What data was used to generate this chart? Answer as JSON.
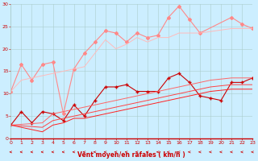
{
  "bg_color": "#cceeff",
  "grid_color": "#aacccc",
  "xlim": [
    0,
    23
  ],
  "ylim": [
    0,
    30
  ],
  "xticks": [
    0,
    1,
    2,
    3,
    4,
    5,
    6,
    7,
    8,
    9,
    10,
    11,
    12,
    13,
    14,
    15,
    16,
    17,
    18,
    19,
    20,
    21,
    22,
    23
  ],
  "yticks": [
    0,
    5,
    10,
    15,
    20,
    25,
    30
  ],
  "xlabel": "Vent moyen/en rafales ( km/h )",
  "xlabel_color": "#cc0000",
  "xlabel_fontsize": 5.5,
  "tick_color": "#cc0000",
  "tick_fontsize": 4.5,
  "lines": [
    {
      "x": [
        0,
        1,
        2,
        3,
        4,
        5,
        6,
        7,
        8,
        9,
        10,
        11,
        12,
        13,
        14,
        15,
        16,
        17,
        18,
        21,
        22,
        23
      ],
      "y": [
        10.5,
        16.5,
        13.0,
        16.5,
        17.0,
        5.5,
        15.5,
        19.0,
        21.5,
        24.0,
        23.5,
        21.5,
        23.5,
        22.5,
        23.0,
        27.0,
        29.5,
        26.5,
        23.5,
        27.0,
        25.5,
        24.5
      ],
      "color": "#ff8888",
      "marker": "D",
      "markersize": 2,
      "linewidth": 0.8,
      "alpha": 1.0
    },
    {
      "x": [
        0,
        1,
        7,
        8,
        9,
        10,
        11,
        12,
        13,
        14,
        15,
        16,
        17,
        18,
        21,
        22,
        23
      ],
      "y": [
        10.5,
        13.0,
        16.0,
        19.0,
        22.0,
        20.0,
        21.0,
        22.5,
        21.5,
        22.5,
        22.5,
        23.5,
        23.5,
        23.5,
        24.5,
        24.5,
        24.5
      ],
      "color": "#ffbbbb",
      "marker": null,
      "markersize": 0,
      "linewidth": 0.7,
      "alpha": 1.0
    },
    {
      "x": [
        0,
        1,
        2,
        3,
        4,
        5,
        6,
        7,
        8,
        9,
        10,
        11,
        12,
        13,
        14,
        15,
        16,
        17,
        18,
        19,
        20,
        21,
        22,
        23
      ],
      "y": [
        3.0,
        6.0,
        3.5,
        6.0,
        5.5,
        4.0,
        7.5,
        5.0,
        8.5,
        11.5,
        11.5,
        12.0,
        10.5,
        10.5,
        10.5,
        13.5,
        14.5,
        12.5,
        9.5,
        9.0,
        8.5,
        12.5,
        12.5,
        13.5
      ],
      "color": "#cc0000",
      "marker": "+",
      "markersize": 3,
      "linewidth": 0.8,
      "alpha": 1.0
    },
    {
      "x": [
        0,
        3,
        4,
        5,
        6,
        7,
        8,
        9,
        10,
        11,
        12,
        13,
        14,
        15,
        16,
        17,
        18,
        19,
        21,
        22,
        23
      ],
      "y": [
        3.0,
        3.5,
        5.5,
        6.0,
        6.5,
        7.0,
        7.5,
        8.0,
        8.5,
        9.0,
        9.5,
        10.0,
        10.5,
        11.0,
        11.5,
        12.0,
        12.5,
        13.0,
        13.5,
        13.5,
        13.5
      ],
      "color": "#ff6666",
      "marker": null,
      "markersize": 0,
      "linewidth": 0.7,
      "alpha": 1.0
    },
    {
      "x": [
        0,
        3,
        4,
        5,
        6,
        7,
        8,
        9,
        10,
        11,
        12,
        13,
        14,
        15,
        16,
        17,
        18,
        19,
        21,
        22,
        23
      ],
      "y": [
        3.0,
        2.5,
        4.0,
        4.5,
        5.0,
        5.5,
        6.0,
        6.5,
        7.0,
        7.5,
        8.0,
        8.5,
        9.0,
        9.5,
        10.0,
        10.5,
        11.0,
        11.5,
        12.0,
        12.0,
        12.0
      ],
      "color": "#ff4444",
      "marker": null,
      "markersize": 0,
      "linewidth": 0.7,
      "alpha": 1.0
    },
    {
      "x": [
        0,
        3,
        4,
        5,
        6,
        7,
        8,
        9,
        10,
        11,
        12,
        13,
        14,
        15,
        16,
        17,
        18,
        19,
        21,
        22,
        23
      ],
      "y": [
        3.0,
        1.5,
        3.0,
        3.5,
        4.5,
        4.5,
        5.0,
        5.5,
        6.0,
        6.5,
        7.0,
        7.5,
        8.0,
        8.5,
        9.0,
        9.5,
        10.0,
        10.5,
        11.0,
        11.0,
        11.0
      ],
      "color": "#ff2222",
      "marker": null,
      "markersize": 0,
      "linewidth": 0.7,
      "alpha": 1.0
    }
  ],
  "bottom_line_color": "#cc0000",
  "bottom_line_y": 0,
  "arrow_color": "#cc0000"
}
